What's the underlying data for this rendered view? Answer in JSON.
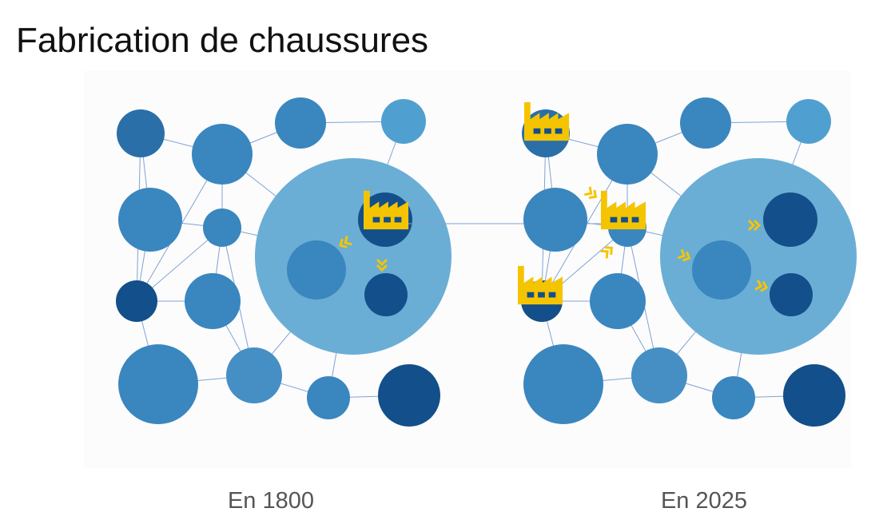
{
  "title": "Fabrication de chaussures",
  "panels": [
    {
      "caption": "En 1800"
    },
    {
      "caption": "En 2025"
    }
  ]
}
